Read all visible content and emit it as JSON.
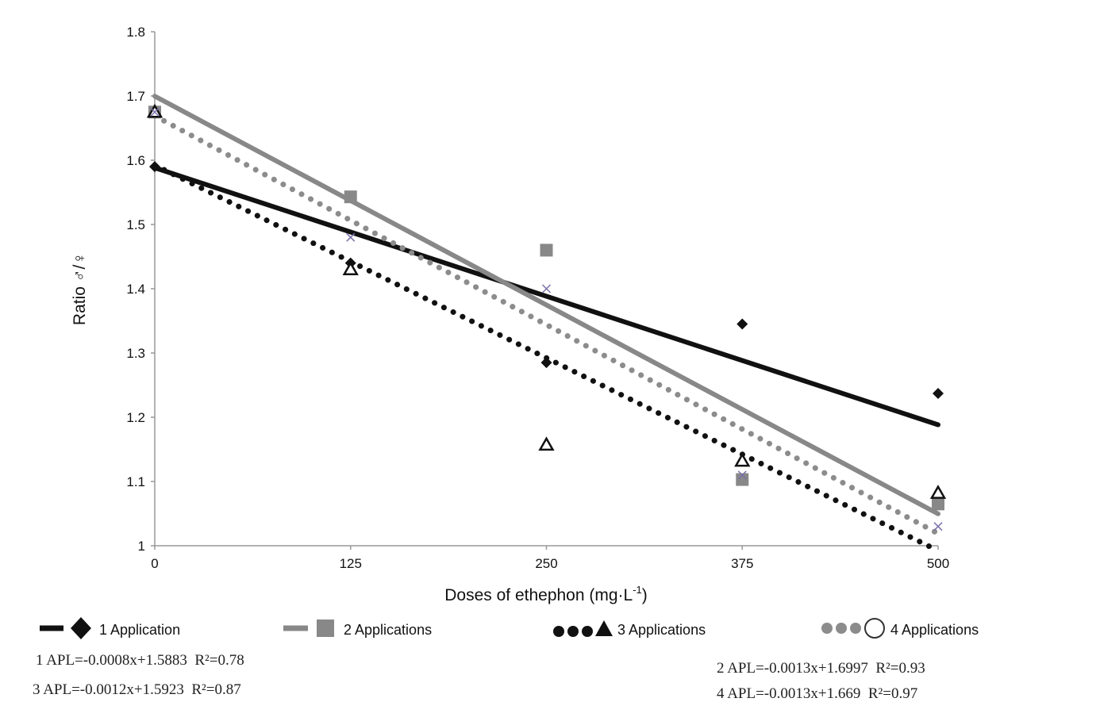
{
  "chart_data": {
    "type": "scatter",
    "title": "",
    "xlabel": "Doses of ethephon (mg·L",
    "xlabel_sup": "-1",
    "xlabel_close": ")",
    "ylabel": "Ratio ♂/♀",
    "xlim": [
      0,
      500
    ],
    "ylim": [
      1,
      1.8
    ],
    "x_ticks": [
      "0",
      "125",
      "250",
      "375",
      "500"
    ],
    "y_ticks": [
      "1",
      "1.1",
      "1.2",
      "1.3",
      "1.4",
      "1.5",
      "1.6",
      "1.7",
      "1.8"
    ],
    "grid": false,
    "legend_position": "bottom",
    "x": [
      0,
      125,
      250,
      375,
      500
    ],
    "series": [
      {
        "name": "1 Application",
        "marker": "diamond",
        "color": "#111111",
        "line_style": "solid",
        "values": [
          1.59,
          1.44,
          1.285,
          1.345,
          1.237
        ],
        "trend": {
          "slope": -0.0008,
          "intercept": 1.5883
        },
        "equation": "1 APL=-0.0008x+1.5883  R²=0.78"
      },
      {
        "name": "2 Applications",
        "marker": "square",
        "color": "#888888",
        "line_style": "solid",
        "values": [
          1.675,
          1.543,
          1.46,
          1.103,
          1.065
        ],
        "trend": {
          "slope": -0.0013,
          "intercept": 1.6997
        },
        "equation": "2 APL=-0.0013x+1.6997  R²=0.93"
      },
      {
        "name": "3 Applications",
        "marker": "triangle",
        "color": "#111111",
        "line_style": "dotted",
        "values": [
          1.675,
          1.43,
          1.157,
          1.132,
          1.082
        ],
        "trend": {
          "slope": -0.0012,
          "intercept": 1.5923
        },
        "equation": "3 APL=-0.0012x+1.5923  R²=0.87"
      },
      {
        "name": "4 Applications",
        "marker": "x",
        "color": "#7a6fa8",
        "trend_color": "#8c8c8c",
        "line_style": "dotted",
        "values": [
          1.675,
          1.48,
          1.4,
          1.11,
          1.03
        ],
        "trend": {
          "slope": -0.0013,
          "intercept": 1.669
        },
        "equation": "4 APL=-0.0013x+1.669  R²=0.97"
      }
    ]
  }
}
